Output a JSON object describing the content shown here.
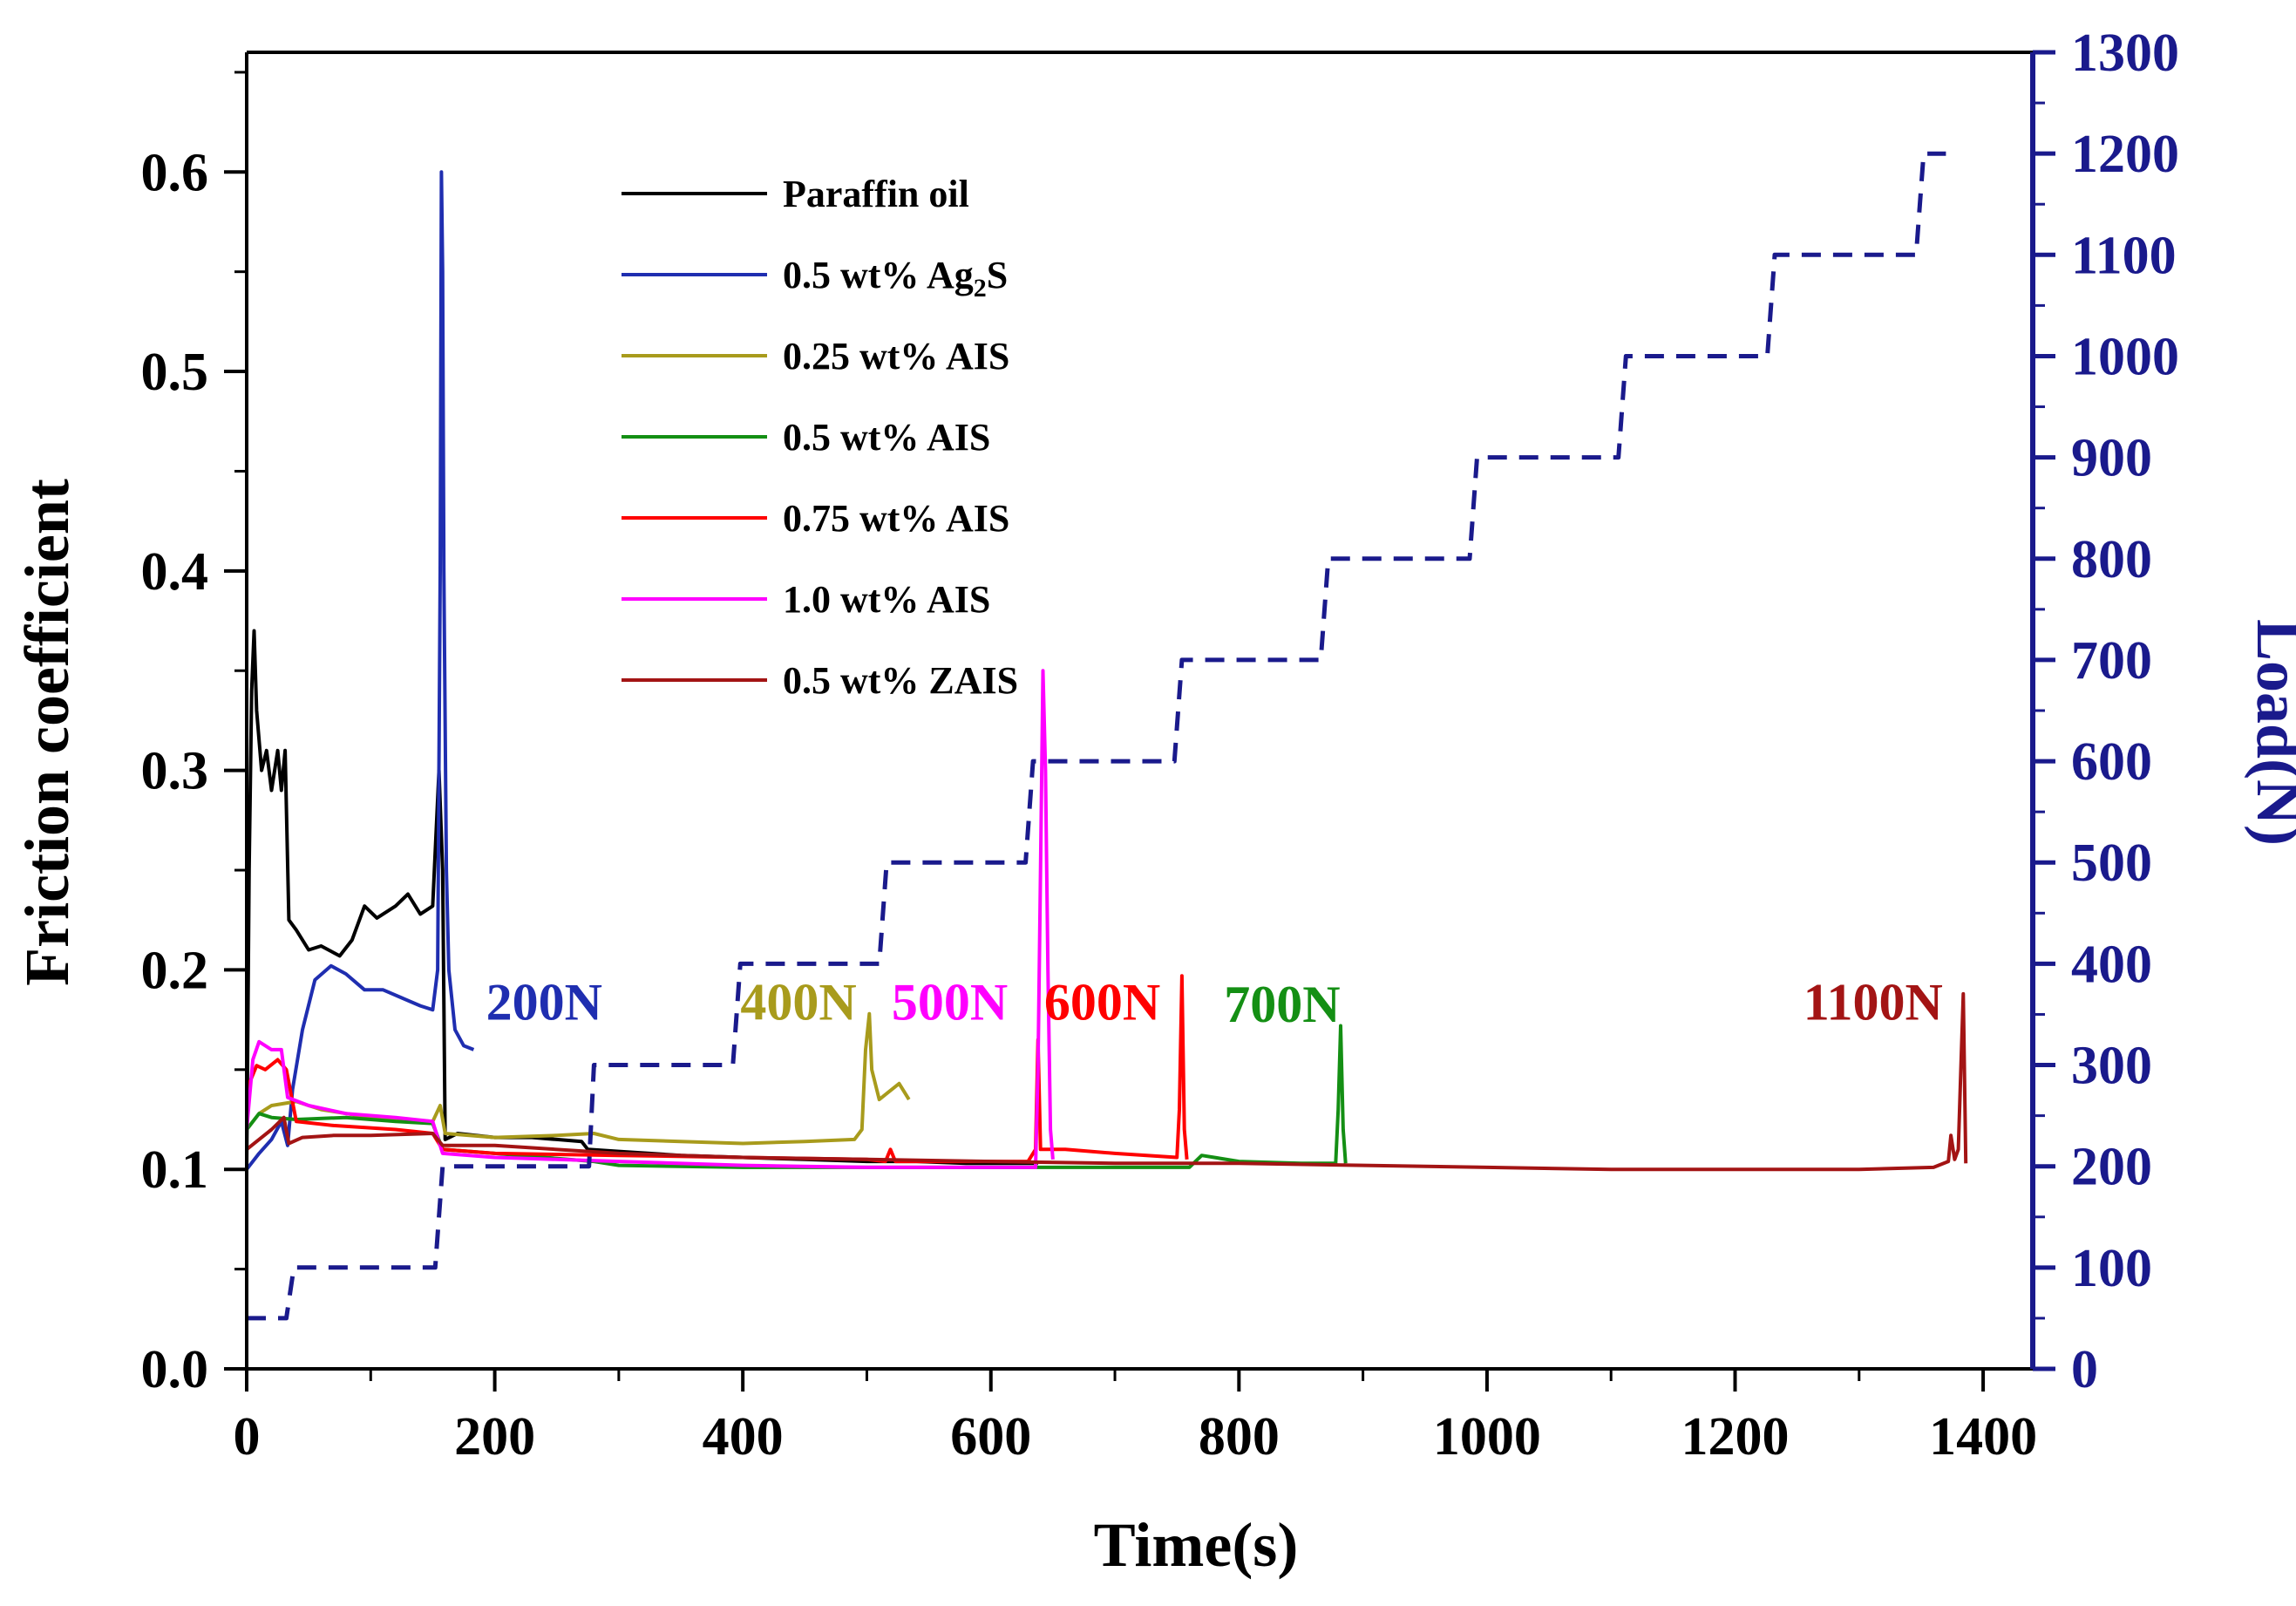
{
  "chart_data": {
    "type": "line",
    "xlabel": "Time(s)",
    "ylabel": "Friction coefficient",
    "y2label": "Load(N)",
    "xlim": [
      0,
      1440
    ],
    "ylim": [
      0,
      0.66
    ],
    "y2lim": [
      0,
      1300
    ],
    "x_ticks": [
      "0",
      "200",
      "400",
      "600",
      "800",
      "1000",
      "1200",
      "1400"
    ],
    "y_ticks": [
      "0.0",
      "0.1",
      "0.2",
      "0.3",
      "0.4",
      "0.5",
      "0.6"
    ],
    "y2_ticks": [
      "0",
      "100",
      "200",
      "300",
      "400",
      "500",
      "600",
      "700",
      "800",
      "900",
      "1000",
      "1100",
      "1200",
      "1300"
    ],
    "colors": {
      "axis_right": "#1a1a8c",
      "load_line": "#1a1a8c"
    },
    "legend_position": "top-left-center",
    "series": [
      {
        "name": "Paraffin oil",
        "color": "#000000",
        "points": [
          [
            0,
            0.1
          ],
          [
            2,
            0.25
          ],
          [
            4,
            0.34
          ],
          [
            6,
            0.37
          ],
          [
            8,
            0.33
          ],
          [
            12,
            0.3
          ],
          [
            16,
            0.31
          ],
          [
            20,
            0.29
          ],
          [
            25,
            0.31
          ],
          [
            28,
            0.29
          ],
          [
            31,
            0.31
          ],
          [
            34,
            0.225
          ],
          [
            40,
            0.22
          ],
          [
            50,
            0.21
          ],
          [
            60,
            0.212
          ],
          [
            75,
            0.207
          ],
          [
            85,
            0.215
          ],
          [
            95,
            0.232
          ],
          [
            105,
            0.226
          ],
          [
            120,
            0.232
          ],
          [
            130,
            0.238
          ],
          [
            140,
            0.228
          ],
          [
            150,
            0.232
          ],
          [
            155,
            0.3
          ],
          [
            158,
            0.25
          ],
          [
            160,
            0.115
          ],
          [
            170,
            0.118
          ],
          [
            200,
            0.116
          ],
          [
            230,
            0.116
          ],
          [
            250,
            0.115
          ],
          [
            270,
            0.114
          ],
          [
            275,
            0.11
          ],
          [
            300,
            0.109
          ],
          [
            350,
            0.107
          ],
          [
            400,
            0.106
          ],
          [
            450,
            0.105
          ],
          [
            500,
            0.104
          ],
          [
            540,
            0.104
          ],
          [
            580,
            0.103
          ],
          [
            620,
            0.103
          ],
          [
            638,
            0.103
          ]
        ]
      },
      {
        "name": "0.5 wt% Ag2S",
        "legend_main": "0.5 wt% Ag",
        "legend_sub": "2",
        "legend_tail": "S",
        "color": "#1f2eb0",
        "points": [
          [
            0,
            0.1
          ],
          [
            10,
            0.108
          ],
          [
            20,
            0.115
          ],
          [
            28,
            0.124
          ],
          [
            33,
            0.112
          ],
          [
            37,
            0.14
          ],
          [
            45,
            0.17
          ],
          [
            55,
            0.195
          ],
          [
            68,
            0.202
          ],
          [
            80,
            0.198
          ],
          [
            95,
            0.19
          ],
          [
            110,
            0.19
          ],
          [
            125,
            0.186
          ],
          [
            140,
            0.182
          ],
          [
            150,
            0.18
          ],
          [
            154,
            0.2
          ],
          [
            156,
            0.4
          ],
          [
            157,
            0.6
          ],
          [
            158,
            0.55
          ],
          [
            159,
            0.4
          ],
          [
            161,
            0.25
          ],
          [
            163,
            0.2
          ],
          [
            168,
            0.17
          ],
          [
            175,
            0.162
          ],
          [
            183,
            0.16
          ]
        ]
      },
      {
        "name": "0.25 wt% AIS",
        "color": "#a89b1c",
        "points": [
          [
            0,
            0.12
          ],
          [
            10,
            0.128
          ],
          [
            20,
            0.132
          ],
          [
            40,
            0.134
          ],
          [
            60,
            0.13
          ],
          [
            100,
            0.126
          ],
          [
            150,
            0.124
          ],
          [
            156,
            0.132
          ],
          [
            160,
            0.118
          ],
          [
            200,
            0.116
          ],
          [
            250,
            0.117
          ],
          [
            280,
            0.118
          ],
          [
            300,
            0.115
          ],
          [
            350,
            0.114
          ],
          [
            400,
            0.113
          ],
          [
            450,
            0.114
          ],
          [
            490,
            0.115
          ],
          [
            496,
            0.12
          ],
          [
            499,
            0.16
          ],
          [
            502,
            0.178
          ],
          [
            504,
            0.15
          ],
          [
            510,
            0.135
          ],
          [
            520,
            0.14
          ],
          [
            526,
            0.143
          ],
          [
            534,
            0.135
          ]
        ]
      },
      {
        "name": "0.5 wt% AIS",
        "color": "#148f14",
        "points": [
          [
            0,
            0.12
          ],
          [
            10,
            0.128
          ],
          [
            20,
            0.126
          ],
          [
            40,
            0.125
          ],
          [
            80,
            0.126
          ],
          [
            120,
            0.124
          ],
          [
            150,
            0.123
          ],
          [
            158,
            0.11
          ],
          [
            200,
            0.108
          ],
          [
            280,
            0.104
          ],
          [
            300,
            0.102
          ],
          [
            400,
            0.101
          ],
          [
            500,
            0.101
          ],
          [
            600,
            0.101
          ],
          [
            700,
            0.101
          ],
          [
            760,
            0.101
          ],
          [
            770,
            0.107
          ],
          [
            800,
            0.104
          ],
          [
            850,
            0.103
          ],
          [
            878,
            0.103
          ],
          [
            880,
            0.13
          ],
          [
            882,
            0.172
          ],
          [
            884,
            0.12
          ],
          [
            886,
            0.103
          ]
        ]
      },
      {
        "name": "0.75 wt% AIS",
        "color": "#ff0000",
        "points": [
          [
            0,
            0.14
          ],
          [
            8,
            0.152
          ],
          [
            15,
            0.15
          ],
          [
            25,
            0.155
          ],
          [
            32,
            0.15
          ],
          [
            40,
            0.124
          ],
          [
            70,
            0.122
          ],
          [
            120,
            0.12
          ],
          [
            150,
            0.118
          ],
          [
            158,
            0.11
          ],
          [
            200,
            0.108
          ],
          [
            300,
            0.107
          ],
          [
            400,
            0.106
          ],
          [
            500,
            0.105
          ],
          [
            515,
            0.104
          ],
          [
            519,
            0.11
          ],
          [
            523,
            0.104
          ],
          [
            600,
            0.104
          ],
          [
            630,
            0.104
          ],
          [
            636,
            0.11
          ],
          [
            638,
            0.165
          ],
          [
            640,
            0.11
          ],
          [
            660,
            0.11
          ],
          [
            700,
            0.108
          ],
          [
            750,
            0.106
          ],
          [
            752,
            0.13
          ],
          [
            754,
            0.197
          ],
          [
            756,
            0.12
          ],
          [
            758,
            0.105
          ]
        ]
      },
      {
        "name": "1.0 wt% AIS",
        "color": "#ff00ff",
        "points": [
          [
            0,
            0.12
          ],
          [
            5,
            0.155
          ],
          [
            10,
            0.164
          ],
          [
            20,
            0.16
          ],
          [
            28,
            0.16
          ],
          [
            33,
            0.136
          ],
          [
            50,
            0.132
          ],
          [
            80,
            0.128
          ],
          [
            120,
            0.126
          ],
          [
            150,
            0.124
          ],
          [
            158,
            0.108
          ],
          [
            200,
            0.106
          ],
          [
            300,
            0.104
          ],
          [
            400,
            0.102
          ],
          [
            500,
            0.101
          ],
          [
            600,
            0.101
          ],
          [
            636,
            0.101
          ],
          [
            638,
            0.15
          ],
          [
            640,
            0.25
          ],
          [
            642,
            0.35
          ],
          [
            644,
            0.3
          ],
          [
            646,
            0.2
          ],
          [
            648,
            0.12
          ],
          [
            650,
            0.105
          ]
        ]
      },
      {
        "name": "0.5 wt% ZAIS",
        "color": "#a31414",
        "points": [
          [
            0,
            0.11
          ],
          [
            10,
            0.115
          ],
          [
            20,
            0.12
          ],
          [
            30,
            0.126
          ],
          [
            34,
            0.113
          ],
          [
            45,
            0.116
          ],
          [
            70,
            0.117
          ],
          [
            100,
            0.117
          ],
          [
            150,
            0.118
          ],
          [
            158,
            0.112
          ],
          [
            200,
            0.112
          ],
          [
            300,
            0.108
          ],
          [
            400,
            0.106
          ],
          [
            500,
            0.105
          ],
          [
            600,
            0.104
          ],
          [
            700,
            0.103
          ],
          [
            800,
            0.103
          ],
          [
            900,
            0.102
          ],
          [
            1000,
            0.101
          ],
          [
            1100,
            0.1
          ],
          [
            1200,
            0.1
          ],
          [
            1300,
            0.1
          ],
          [
            1360,
            0.101
          ],
          [
            1372,
            0.104
          ],
          [
            1374,
            0.117
          ],
          [
            1377,
            0.105
          ],
          [
            1380,
            0.11
          ],
          [
            1382,
            0.15
          ],
          [
            1384,
            0.188
          ],
          [
            1386,
            0.103
          ]
        ]
      },
      {
        "name": "Load",
        "axis": "right",
        "style": "dashed",
        "color": "#1a1a8c",
        "points": [
          [
            0,
            50
          ],
          [
            32,
            50
          ],
          [
            38,
            100
          ],
          [
            152,
            100
          ],
          [
            158,
            200
          ],
          [
            276,
            200
          ],
          [
            280,
            300
          ],
          [
            392,
            300
          ],
          [
            398,
            400
          ],
          [
            510,
            400
          ],
          [
            516,
            500
          ],
          [
            628,
            500
          ],
          [
            634,
            600
          ],
          [
            748,
            600
          ],
          [
            754,
            700
          ],
          [
            866,
            700
          ],
          [
            872,
            800
          ],
          [
            986,
            800
          ],
          [
            992,
            900
          ],
          [
            1106,
            900
          ],
          [
            1112,
            1000
          ],
          [
            1226,
            1000
          ],
          [
            1232,
            1100
          ],
          [
            1346,
            1100
          ],
          [
            1352,
            1200
          ],
          [
            1370,
            1200
          ]
        ]
      }
    ],
    "annotations": [
      {
        "text": "200N",
        "x": 193,
        "y": 0.175,
        "color": "#1f2eb0"
      },
      {
        "text": "400N",
        "x": 398,
        "y": 0.175,
        "color": "#a89b1c"
      },
      {
        "text": "500N",
        "x": 520,
        "y": 0.175,
        "color": "#ff00ff"
      },
      {
        "text": "600N",
        "x": 643,
        "y": 0.175,
        "color": "#ff0000"
      },
      {
        "text": "700N",
        "x": 788,
        "y": 0.174,
        "color": "#148f14"
      },
      {
        "text": "1100N",
        "x": 1255,
        "y": 0.175,
        "color": "#a31414"
      }
    ]
  }
}
